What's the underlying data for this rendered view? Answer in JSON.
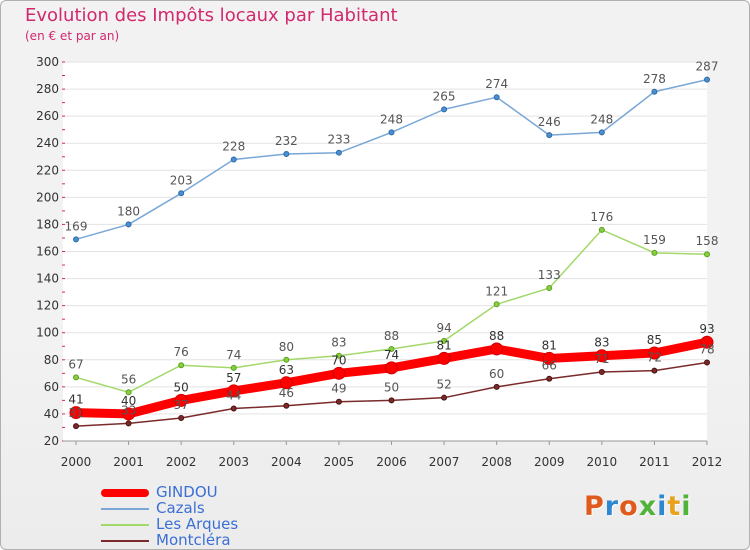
{
  "header": {
    "title": "Evolution des Impôts locaux par Habitant",
    "subtitle": "(en € et par an)"
  },
  "colors": {
    "title": "#d2286e",
    "legend_text": "#3b6fd6",
    "gindou": "#ff0000",
    "cazals": "#7aa7d6",
    "les_arques": "#a3d86a",
    "montclera": "#7a2a2a"
  },
  "logo": {
    "text": "Proxiti"
  },
  "chart_data": {
    "type": "line",
    "title": "Evolution des Impôts locaux par Habitant",
    "subtitle": "(en € et par an)",
    "xlabel": "",
    "ylabel": "",
    "x": [
      "2000",
      "2001",
      "2002",
      "2003",
      "2004",
      "2005",
      "2006",
      "2007",
      "2008",
      "2009",
      "2010",
      "2011",
      "2012"
    ],
    "ylim": [
      20,
      300
    ],
    "yticks": [
      "20",
      "40",
      "60",
      "80",
      "100",
      "120",
      "140",
      "160",
      "180",
      "200",
      "220",
      "240",
      "260",
      "280",
      "300"
    ],
    "grid": "horizontal",
    "legend_position": "bottom-left",
    "series": [
      {
        "name": "Cazals",
        "values": [
          169,
          180,
          203,
          228,
          232,
          233,
          248,
          265,
          274,
          246,
          248,
          278,
          287
        ]
      },
      {
        "name": "Les Arques",
        "values": [
          67,
          56,
          76,
          74,
          80,
          83,
          88,
          94,
          121,
          133,
          176,
          159,
          158
        ]
      },
      {
        "name": "Montcléra",
        "values": [
          31,
          33,
          37,
          44,
          46,
          49,
          50,
          52,
          60,
          66,
          71,
          72,
          78
        ]
      },
      {
        "name": "GINDOU",
        "values": [
          41,
          40,
          50,
          57,
          63,
          70,
          74,
          81,
          88,
          81,
          83,
          85,
          93
        ]
      }
    ]
  },
  "legend": {
    "items": [
      {
        "label": "GINDOU"
      },
      {
        "label": "Cazals"
      },
      {
        "label": "Les Arques"
      },
      {
        "label": "Montcléra"
      }
    ]
  }
}
